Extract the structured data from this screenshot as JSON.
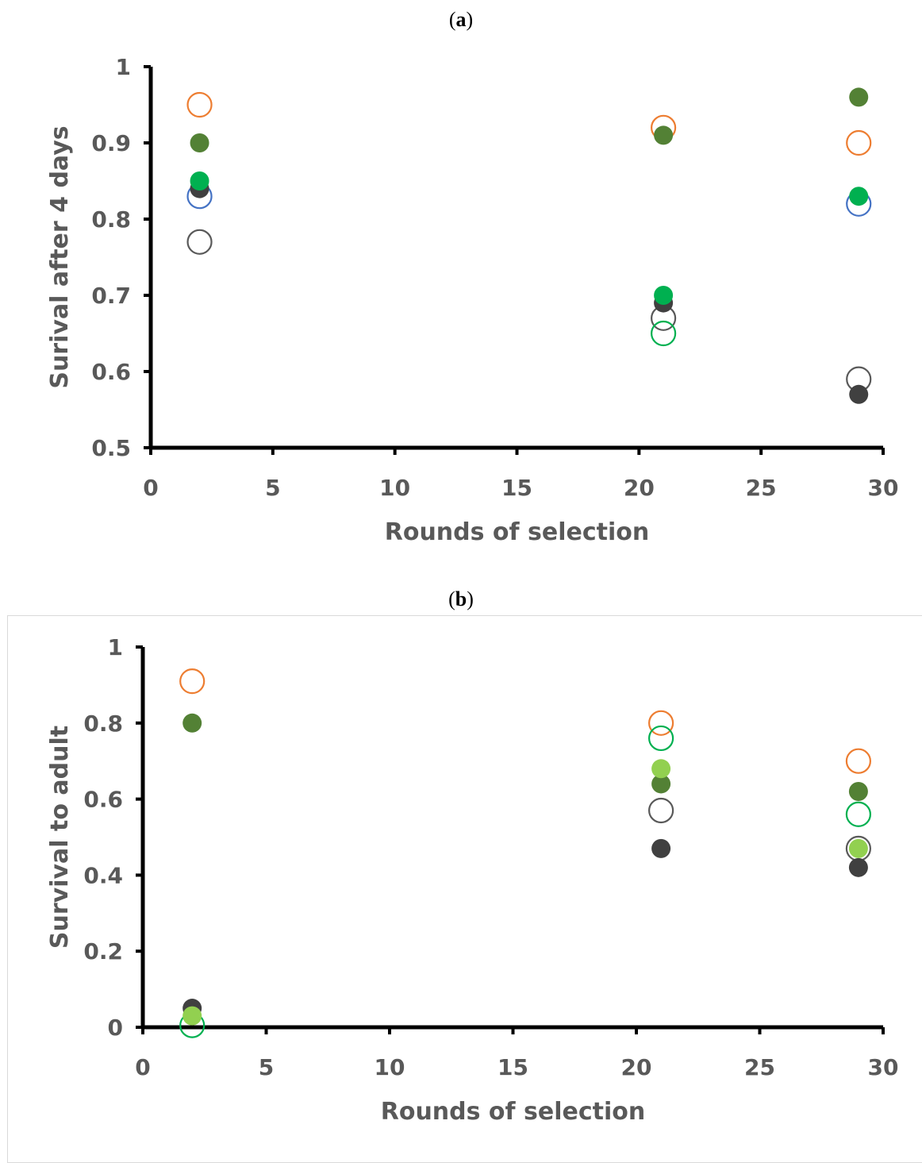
{
  "panels": [
    {
      "label_pre": "(",
      "label_letter": "a",
      "label_post": ")",
      "chart_data": {
        "type": "scatter",
        "title": "",
        "xlabel": "Rounds of selection",
        "ylabel": "Surival after 4 days",
        "xlim": [
          0,
          30
        ],
        "ylim": [
          0.5,
          1
        ],
        "xticks": [
          0,
          5,
          10,
          15,
          20,
          25,
          30
        ],
        "yticks": [
          0.5,
          0.6,
          0.7,
          0.8,
          0.9,
          1
        ],
        "ytick_labels": [
          "0.5",
          "0.6",
          "0.7",
          "0.8",
          "0.9",
          "1"
        ],
        "grid": false,
        "legend": "none",
        "series": [
          {
            "color": "#ed7d31",
            "filled": false,
            "points": [
              [
                2,
                0.95
              ],
              [
                21,
                0.92
              ],
              [
                29,
                0.9
              ]
            ]
          },
          {
            "color": "#4472c4",
            "filled": false,
            "points": [
              [
                2,
                0.83
              ],
              [
                29,
                0.82
              ]
            ]
          },
          {
            "color": "#595959",
            "filled": false,
            "points": [
              [
                2,
                0.77
              ],
              [
                21,
                0.67
              ],
              [
                29,
                0.59
              ]
            ]
          },
          {
            "color": "#00b050",
            "filled": false,
            "points": [
              [
                21,
                0.65
              ]
            ]
          },
          {
            "color": "#538135",
            "filled": true,
            "points": [
              [
                2,
                0.9
              ],
              [
                21,
                0.91
              ],
              [
                29,
                0.96
              ]
            ]
          },
          {
            "color": "#404040",
            "filled": true,
            "points": [
              [
                2,
                0.84
              ],
              [
                21,
                0.69
              ],
              [
                29,
                0.57
              ]
            ]
          },
          {
            "color": "#00b050",
            "filled": true,
            "points": [
              [
                2,
                0.85
              ],
              [
                21,
                0.7
              ],
              [
                29,
                0.83
              ]
            ]
          }
        ]
      }
    },
    {
      "label_pre": "(",
      "label_letter": "b",
      "label_post": ")",
      "chart_data": {
        "type": "scatter",
        "title": "",
        "xlabel": "Rounds of selection",
        "ylabel": "Survival to adult",
        "xlim": [
          0,
          30
        ],
        "ylim": [
          0,
          1
        ],
        "xticks": [
          0,
          5,
          10,
          15,
          20,
          25,
          30
        ],
        "yticks": [
          0,
          0.2,
          0.4,
          0.6,
          0.8,
          1
        ],
        "ytick_labels": [
          "0",
          "0.2",
          "0.4",
          "0.6",
          "0.8",
          "1"
        ],
        "grid": false,
        "legend": "none",
        "series": [
          {
            "color": "#ed7d31",
            "filled": false,
            "points": [
              [
                2,
                0.91
              ],
              [
                21,
                0.8
              ],
              [
                29,
                0.7
              ]
            ]
          },
          {
            "color": "#00b050",
            "filled": false,
            "points": [
              [
                2,
                0.005
              ],
              [
                21,
                0.76
              ],
              [
                29,
                0.56
              ]
            ]
          },
          {
            "color": "#595959",
            "filled": false,
            "points": [
              [
                21,
                0.57
              ],
              [
                29,
                0.47
              ]
            ]
          },
          {
            "color": "#538135",
            "filled": true,
            "points": [
              [
                2,
                0.8
              ],
              [
                21,
                0.64
              ],
              [
                29,
                0.62
              ]
            ]
          },
          {
            "color": "#404040",
            "filled": true,
            "points": [
              [
                2,
                0.05
              ],
              [
                21,
                0.47
              ],
              [
                29,
                0.42
              ]
            ]
          },
          {
            "color": "#92d050",
            "filled": true,
            "points": [
              [
                2,
                0.03
              ],
              [
                21,
                0.68
              ],
              [
                29,
                0.47
              ]
            ]
          }
        ]
      }
    }
  ]
}
